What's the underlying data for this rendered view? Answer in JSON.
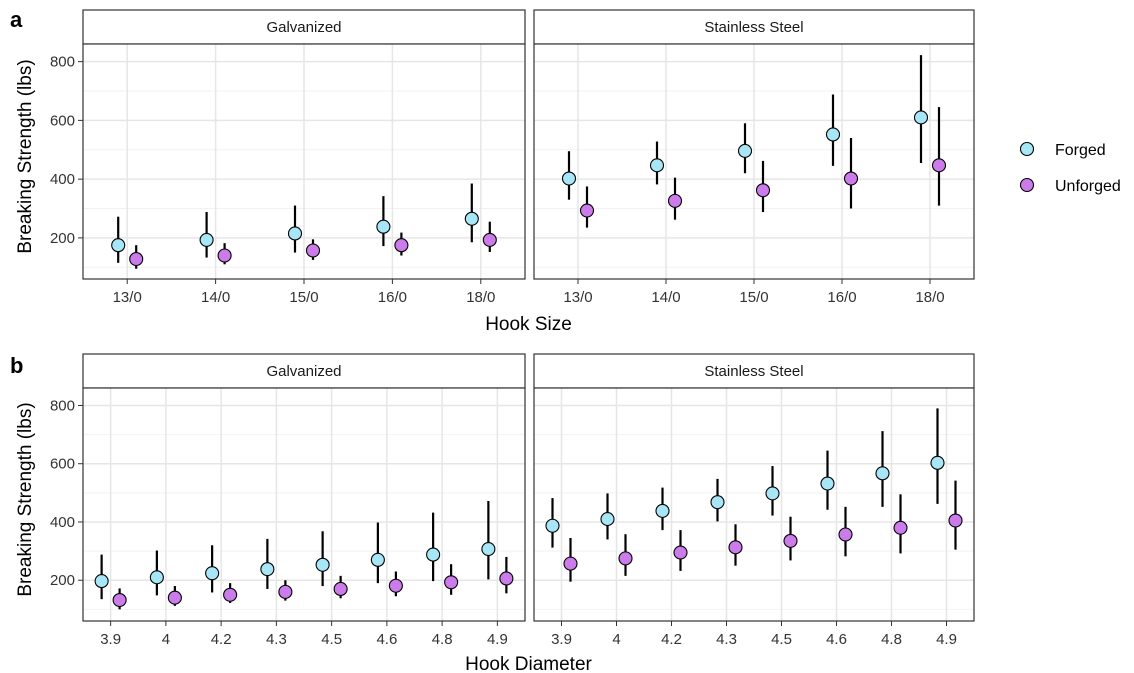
{
  "legend": {
    "items": [
      {
        "label": "Forged",
        "color": "#a6e6f7"
      },
      {
        "label": "Unforged",
        "color": "#cc7bea"
      }
    ]
  },
  "chart_data": [
    {
      "tag": "a",
      "type": "scatter",
      "xlabel": "Hook Size",
      "ylabel": "Breaking Strength (lbs)",
      "ylim": [
        60,
        860
      ],
      "yticks": [
        200,
        400,
        600,
        800
      ],
      "grid": true,
      "categories": [
        "13/0",
        "14/0",
        "15/0",
        "16/0",
        "18/0"
      ],
      "facets": [
        {
          "label": "Galvanized",
          "series": [
            {
              "name": "Forged",
              "points": [
                {
                  "x": "13/0",
                  "y": 175,
                  "low": 115,
                  "high": 272
                },
                {
                  "x": "14/0",
                  "y": 193,
                  "low": 133,
                  "high": 288
                },
                {
                  "x": "15/0",
                  "y": 215,
                  "low": 150,
                  "high": 310
                },
                {
                  "x": "16/0",
                  "y": 238,
                  "low": 172,
                  "high": 342
                },
                {
                  "x": "18/0",
                  "y": 265,
                  "low": 185,
                  "high": 385
                }
              ]
            },
            {
              "name": "Unforged",
              "points": [
                {
                  "x": "13/0",
                  "y": 128,
                  "low": 95,
                  "high": 175
                },
                {
                  "x": "14/0",
                  "y": 140,
                  "low": 110,
                  "high": 182
                },
                {
                  "x": "15/0",
                  "y": 157,
                  "low": 125,
                  "high": 195
                },
                {
                  "x": "16/0",
                  "y": 175,
                  "low": 140,
                  "high": 218
                },
                {
                  "x": "18/0",
                  "y": 193,
                  "low": 152,
                  "high": 255
                }
              ]
            }
          ]
        },
        {
          "label": "Stainless Steel",
          "series": [
            {
              "name": "Forged",
              "points": [
                {
                  "x": "13/0",
                  "y": 402,
                  "low": 330,
                  "high": 495
                },
                {
                  "x": "14/0",
                  "y": 447,
                  "low": 382,
                  "high": 528
                },
                {
                  "x": "15/0",
                  "y": 496,
                  "low": 420,
                  "high": 590
                },
                {
                  "x": "16/0",
                  "y": 552,
                  "low": 445,
                  "high": 688
                },
                {
                  "x": "18/0",
                  "y": 610,
                  "low": 455,
                  "high": 822
                }
              ]
            },
            {
              "name": "Unforged",
              "points": [
                {
                  "x": "13/0",
                  "y": 293,
                  "low": 235,
                  "high": 375
                },
                {
                  "x": "14/0",
                  "y": 326,
                  "low": 262,
                  "high": 405
                },
                {
                  "x": "15/0",
                  "y": 362,
                  "low": 288,
                  "high": 462
                },
                {
                  "x": "16/0",
                  "y": 402,
                  "low": 300,
                  "high": 540
                },
                {
                  "x": "18/0",
                  "y": 447,
                  "low": 310,
                  "high": 645
                }
              ]
            }
          ]
        }
      ]
    },
    {
      "tag": "b",
      "type": "scatter",
      "xlabel": "Hook Diameter",
      "ylabel": "Breaking Strength (lbs)",
      "ylim": [
        60,
        860
      ],
      "yticks": [
        200,
        400,
        600,
        800
      ],
      "grid": true,
      "categories": [
        "3.9",
        "4",
        "4.2",
        "4.3",
        "4.5",
        "4.6",
        "4.8",
        "4.9"
      ],
      "facets": [
        {
          "label": "Galvanized",
          "series": [
            {
              "name": "Forged",
              "points": [
                {
                  "x": "3.9",
                  "y": 197,
                  "low": 135,
                  "high": 288
                },
                {
                  "x": "4",
                  "y": 210,
                  "low": 148,
                  "high": 302
                },
                {
                  "x": "4.2",
                  "y": 224,
                  "low": 158,
                  "high": 320
                },
                {
                  "x": "4.3",
                  "y": 238,
                  "low": 170,
                  "high": 342
                },
                {
                  "x": "4.5",
                  "y": 253,
                  "low": 180,
                  "high": 368
                },
                {
                  "x": "4.6",
                  "y": 270,
                  "low": 190,
                  "high": 398
                },
                {
                  "x": "4.8",
                  "y": 288,
                  "low": 197,
                  "high": 432
                },
                {
                  "x": "4.9",
                  "y": 307,
                  "low": 203,
                  "high": 472
                }
              ]
            },
            {
              "name": "Unforged",
              "points": [
                {
                  "x": "3.9",
                  "y": 132,
                  "low": 100,
                  "high": 172
                },
                {
                  "x": "4",
                  "y": 140,
                  "low": 112,
                  "high": 180
                },
                {
                  "x": "4.2",
                  "y": 150,
                  "low": 122,
                  "high": 190
                },
                {
                  "x": "4.3",
                  "y": 160,
                  "low": 130,
                  "high": 200
                },
                {
                  "x": "4.5",
                  "y": 170,
                  "low": 138,
                  "high": 215
                },
                {
                  "x": "4.6",
                  "y": 181,
                  "low": 145,
                  "high": 230
                },
                {
                  "x": "4.8",
                  "y": 193,
                  "low": 150,
                  "high": 255
                },
                {
                  "x": "4.9",
                  "y": 206,
                  "low": 155,
                  "high": 280
                }
              ]
            }
          ]
        },
        {
          "label": "Stainless Steel",
          "series": [
            {
              "name": "Forged",
              "points": [
                {
                  "x": "3.9",
                  "y": 387,
                  "low": 312,
                  "high": 482
                },
                {
                  "x": "4",
                  "y": 410,
                  "low": 340,
                  "high": 498
                },
                {
                  "x": "4.2",
                  "y": 438,
                  "low": 372,
                  "high": 518
                },
                {
                  "x": "4.3",
                  "y": 468,
                  "low": 402,
                  "high": 548
                },
                {
                  "x": "4.5",
                  "y": 498,
                  "low": 422,
                  "high": 592
                },
                {
                  "x": "4.6",
                  "y": 532,
                  "low": 442,
                  "high": 645
                },
                {
                  "x": "4.8",
                  "y": 567,
                  "low": 452,
                  "high": 712
                },
                {
                  "x": "4.9",
                  "y": 603,
                  "low": 462,
                  "high": 790
                }
              ]
            },
            {
              "name": "Unforged",
              "points": [
                {
                  "x": "3.9",
                  "y": 257,
                  "low": 195,
                  "high": 345
                },
                {
                  "x": "4",
                  "y": 275,
                  "low": 215,
                  "high": 358
                },
                {
                  "x": "4.2",
                  "y": 295,
                  "low": 232,
                  "high": 372
                },
                {
                  "x": "4.3",
                  "y": 313,
                  "low": 250,
                  "high": 392
                },
                {
                  "x": "4.5",
                  "y": 335,
                  "low": 268,
                  "high": 418
                },
                {
                  "x": "4.6",
                  "y": 357,
                  "low": 282,
                  "high": 452
                },
                {
                  "x": "4.8",
                  "y": 380,
                  "low": 292,
                  "high": 495
                },
                {
                  "x": "4.9",
                  "y": 405,
                  "low": 305,
                  "high": 542
                }
              ]
            }
          ]
        }
      ]
    }
  ]
}
